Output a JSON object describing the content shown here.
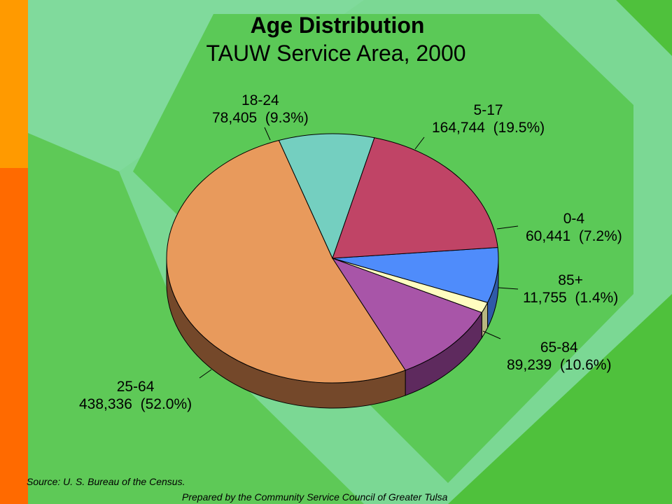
{
  "colors": {
    "background_green": "#4fc13c",
    "diamond_light": "#7dd99a",
    "diamond_mid": "#5fcf6a",
    "bar_orange": "#ff9a00",
    "bar_red_orange": "#ff6a00"
  },
  "chart_data": {
    "type": "pie",
    "title": "Age Distribution",
    "subtitle": "TAUW Service Area, 2000",
    "slices": [
      {
        "label": "0-4",
        "value": 60441,
        "percent": 7.2,
        "value_text": "60,441",
        "percent_text": "(7.2%)",
        "color": "#4f8cfb",
        "side_color": "#2f5aa8"
      },
      {
        "label": "85+",
        "value": 11755,
        "percent": 1.4,
        "value_text": "11,755",
        "percent_text": "(1.4%)",
        "color": "#fffdc0",
        "side_color": "#b8b680"
      },
      {
        "label": "65-84",
        "value": 89239,
        "percent": 10.6,
        "value_text": "89,239",
        "percent_text": "(10.6%)",
        "color": "#a855a8",
        "side_color": "#5e2a5e"
      },
      {
        "label": "25-64",
        "value": 438336,
        "percent": 52.0,
        "value_text": "438,336",
        "percent_text": "(52.0%)",
        "color": "#e89a5c",
        "side_color": "#74482a"
      },
      {
        "label": "18-24",
        "value": 78405,
        "percent": 9.3,
        "value_text": "78,405",
        "percent_text": "(9.3%)",
        "color": "#74cfc0",
        "side_color": "#3f8077"
      },
      {
        "label": "5-17",
        "value": 164744,
        "percent": 19.5,
        "value_text": "164,744",
        "percent_text": "(19.5%)",
        "color": "#c04466",
        "side_color": "#6e2438"
      }
    ],
    "legend": "none"
  },
  "footer": {
    "source": "Source:  U. S. Bureau of the Census.",
    "prepared": "Prepared by the Community Service Council of Greater Tulsa"
  }
}
